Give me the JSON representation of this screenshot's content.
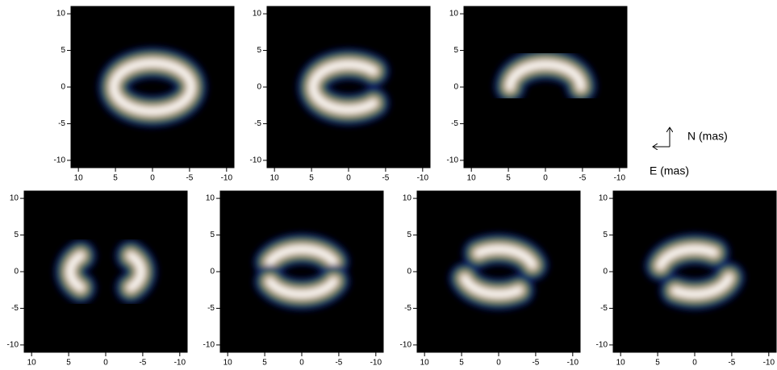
{
  "chart_data": [
    {
      "type": "image",
      "xlim": [
        11,
        -11
      ],
      "ylim": [
        -11,
        11
      ],
      "xticks": [
        10,
        5,
        0,
        -5,
        -10
      ],
      "yticks": [
        -10,
        -5,
        0,
        5,
        10
      ]
    },
    {
      "type": "image",
      "xlim": [
        11,
        -11
      ],
      "ylim": [
        -11,
        11
      ],
      "xticks": [
        10,
        5,
        0,
        -5,
        -10
      ],
      "yticks": [
        -10,
        -5,
        0,
        5,
        10
      ]
    },
    {
      "type": "image",
      "xlim": [
        11,
        -11
      ],
      "ylim": [
        -11,
        11
      ],
      "xticks": [
        10,
        5,
        0,
        -5,
        -10
      ],
      "yticks": [
        -10,
        -5,
        0,
        5,
        10
      ]
    },
    {
      "type": "image",
      "xlim": [
        11,
        -11
      ],
      "ylim": [
        -11,
        11
      ],
      "xticks": [
        10,
        5,
        0,
        -5,
        -10
      ],
      "yticks": [
        -10,
        -5,
        0,
        5,
        10
      ]
    },
    {
      "type": "image",
      "xlim": [
        11,
        -11
      ],
      "ylim": [
        -11,
        11
      ],
      "xticks": [
        10,
        5,
        0,
        -5,
        -10
      ],
      "yticks": [
        -10,
        -5,
        0,
        5,
        10
      ]
    },
    {
      "type": "image",
      "xlim": [
        11,
        -11
      ],
      "ylim": [
        -11,
        11
      ],
      "xticks": [
        10,
        5,
        0,
        -5,
        -10
      ],
      "yticks": [
        -10,
        -5,
        0,
        5,
        10
      ]
    },
    {
      "type": "image",
      "xlim": [
        11,
        -11
      ],
      "ylim": [
        -11,
        11
      ],
      "xticks": [
        10,
        5,
        0,
        -5,
        -10
      ],
      "yticks": [
        -10,
        -5,
        0,
        5,
        10
      ]
    }
  ],
  "compass": {
    "north": "N (mas)",
    "east": "E (mas)"
  }
}
